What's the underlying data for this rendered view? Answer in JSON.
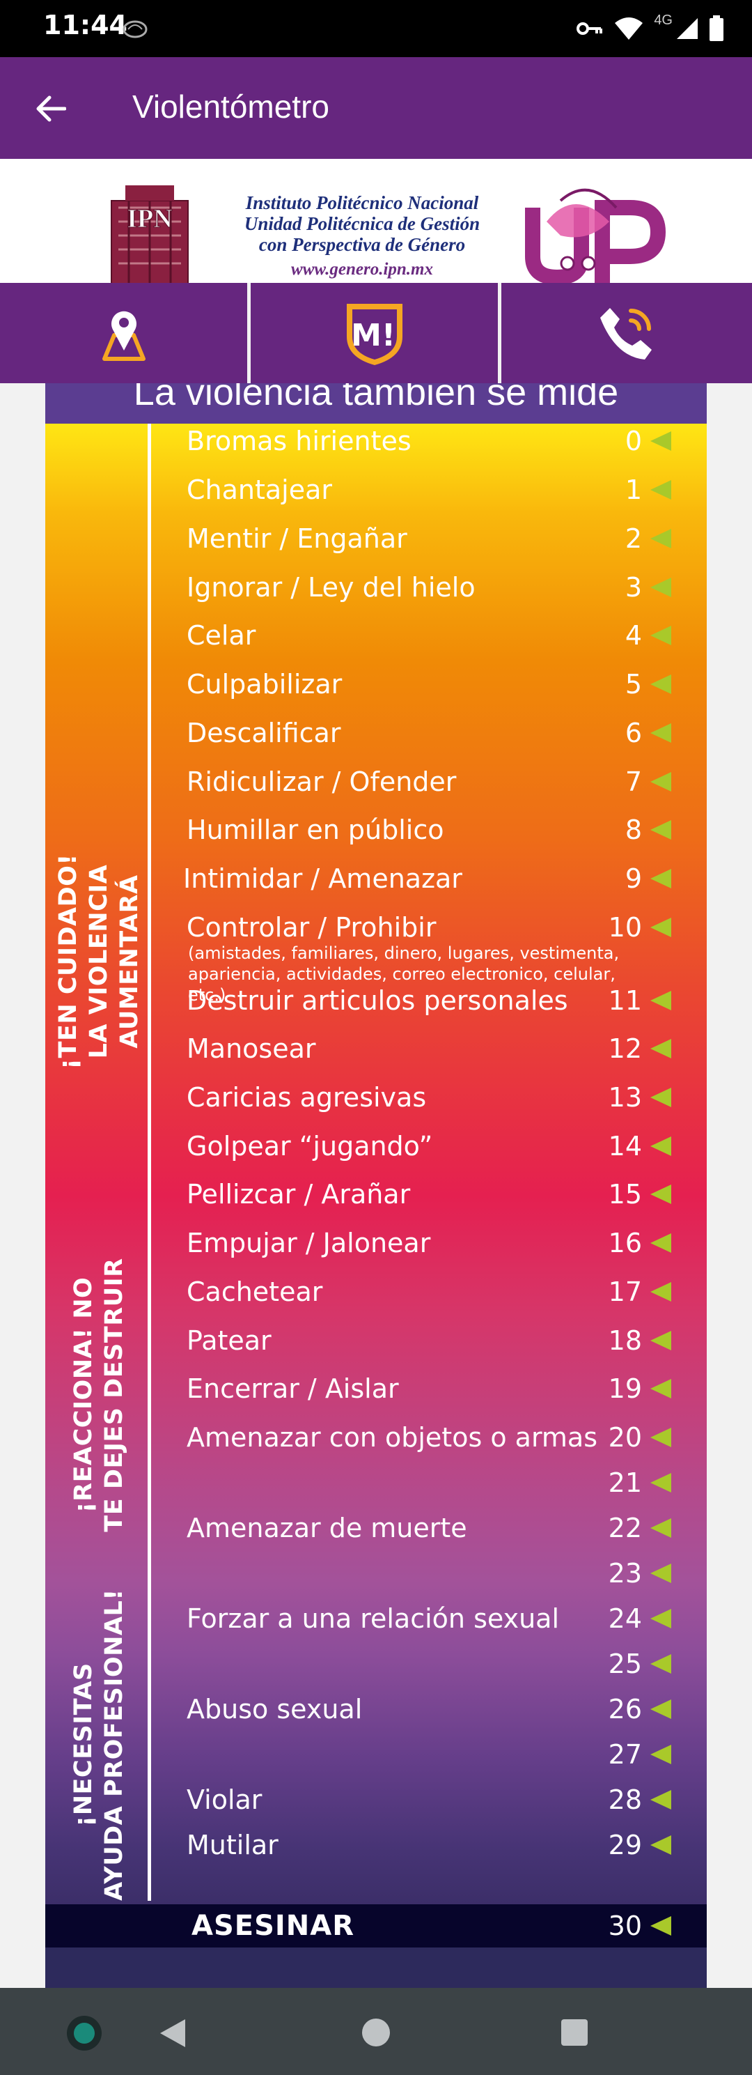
{
  "status_bar": {
    "time": "11:44",
    "network": "4G"
  },
  "app_bar": {
    "title": "Violentómetro"
  },
  "header": {
    "ipn_logo_text": "IPN",
    "institution_line1": "Instituto Politécnico Nacional",
    "institution_line2": "Unidad Politécnica de Gestión",
    "institution_line3": "con Perspectiva de Género",
    "website": "www.genero.ipn.mx",
    "upn_logo_text": "UPN"
  },
  "tabs": [
    {
      "name": "location",
      "icon": "map-pin-icon"
    },
    {
      "name": "mujeres",
      "icon": "mujeres-logo-icon",
      "text": "M!"
    },
    {
      "name": "phone",
      "icon": "phone-icon"
    }
  ],
  "scale": {
    "title": "La violencia también se mide",
    "side_labels": [
      {
        "line1": "¡TEN CUIDADO!",
        "line2": "LA VIOLENCIA AUMENTARÁ"
      },
      {
        "line1": "¡REACCIONA! NO",
        "line2": "TE DEJES DESTRUIR"
      },
      {
        "line1": "¡NECESITAS",
        "line2": "AYUDA PROFESIONAL!"
      }
    ],
    "items": [
      {
        "label": "Bromas hirientes",
        "number": "0"
      },
      {
        "label": "Chantajear",
        "number": "1"
      },
      {
        "label": "Mentir / Engañar",
        "number": "2"
      },
      {
        "label": "Ignorar / Ley del hielo",
        "number": "3"
      },
      {
        "label": "Celar",
        "number": "4"
      },
      {
        "label": "Culpabilizar",
        "number": "5"
      },
      {
        "label": "Descalificar",
        "number": "6"
      },
      {
        "label": "Ridiculizar / Ofender",
        "number": "7"
      },
      {
        "label": "Humillar en público",
        "number": "8"
      },
      {
        "label": "Intimidar / Amenazar",
        "number": "9"
      },
      {
        "label": "Controlar / Prohibir",
        "number": "10",
        "note": "(amistades, familiares, dinero, lugares, vestimenta, apariencia, actividades, correo electronico, celular, etc.)"
      },
      {
        "label": "Destruir articulos personales",
        "number": "11"
      },
      {
        "label": "Manosear",
        "number": "12"
      },
      {
        "label": "Caricias agresivas",
        "number": "13"
      },
      {
        "label": "Golpear “jugando”",
        "number": "14"
      },
      {
        "label": "Pellizcar / Arañar",
        "number": "15"
      },
      {
        "label": "Empujar / Jalonear",
        "number": "16"
      },
      {
        "label": "Cachetear",
        "number": "17"
      },
      {
        "label": "Patear",
        "number": "18"
      },
      {
        "label": "Encerrar / Aislar",
        "number": "19"
      },
      {
        "label": "Amenazar con objetos o armas",
        "number": "20"
      },
      {
        "label": "",
        "number": "21"
      },
      {
        "label": "Amenazar de muerte",
        "number": "22"
      },
      {
        "label": "",
        "number": "23"
      },
      {
        "label": "Forzar a una relación sexual",
        "number": "24"
      },
      {
        "label": "",
        "number": "25"
      },
      {
        "label": "Abuso sexual",
        "number": "26"
      },
      {
        "label": "",
        "number": "27"
      },
      {
        "label": "Violar",
        "number": "28"
      },
      {
        "label": "Mutilar",
        "number": "29"
      }
    ],
    "final_item": {
      "label": "ASESINAR",
      "number": "30"
    },
    "marker_color": "#a9c92a"
  },
  "colors": {
    "primary": "#66267f",
    "accent": "#a9c92a"
  }
}
